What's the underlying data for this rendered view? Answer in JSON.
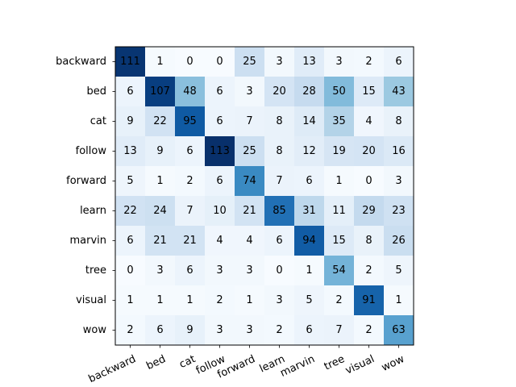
{
  "chart_data": {
    "type": "heatmap",
    "title": "",
    "xlabel": "",
    "ylabel": "",
    "colormap": "Blues",
    "x_tick_rotation_deg": 25,
    "x_labels": [
      "backward",
      "bed",
      "cat",
      "follow",
      "forward",
      "learn",
      "marvin",
      "tree",
      "visual",
      "wow"
    ],
    "y_labels": [
      "backward",
      "bed",
      "cat",
      "follow",
      "forward",
      "learn",
      "marvin",
      "tree",
      "visual",
      "wow"
    ],
    "values": [
      [
        111,
        1,
        0,
        0,
        25,
        3,
        13,
        3,
        2,
        6
      ],
      [
        6,
        107,
        48,
        6,
        3,
        20,
        28,
        50,
        15,
        43
      ],
      [
        9,
        22,
        95,
        6,
        7,
        8,
        14,
        35,
        4,
        8
      ],
      [
        13,
        9,
        6,
        113,
        25,
        8,
        12,
        19,
        20,
        16
      ],
      [
        5,
        1,
        2,
        6,
        74,
        7,
        6,
        1,
        0,
        3
      ],
      [
        22,
        24,
        7,
        10,
        21,
        85,
        31,
        11,
        29,
        23
      ],
      [
        6,
        21,
        21,
        4,
        4,
        6,
        94,
        15,
        8,
        26
      ],
      [
        0,
        3,
        6,
        3,
        3,
        0,
        1,
        54,
        2,
        5
      ],
      [
        1,
        1,
        1,
        2,
        1,
        3,
        5,
        2,
        91,
        1
      ],
      [
        2,
        6,
        9,
        3,
        3,
        2,
        6,
        7,
        2,
        63
      ]
    ],
    "vmin": 0,
    "vmax": 113,
    "grid": false,
    "legend": "none"
  }
}
